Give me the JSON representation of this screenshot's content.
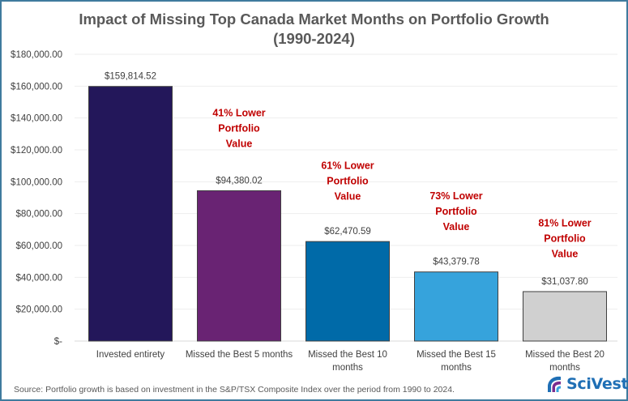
{
  "chart_data": {
    "type": "bar",
    "title": "Impact of Missing Top Canada Market Months on Portfolio Growth",
    "subtitle": "(1990-2024)",
    "xlabel": "",
    "ylabel": "",
    "ylim": [
      0,
      180000
    ],
    "ytick_step": 20000,
    "yticks": [
      "$-",
      "$20,000.00",
      "$40,000.00",
      "$60,000.00",
      "$80,000.00",
      "$100,000.00",
      "$120,000.00",
      "$140,000.00",
      "$160,000.00",
      "$180,000.00"
    ],
    "grid": true,
    "legend": "none",
    "categories": [
      [
        "Invested entirety"
      ],
      [
        "Missed the Best 5 months"
      ],
      [
        "Missed the Best 10",
        "months"
      ],
      [
        "Missed the Best 15",
        "months"
      ],
      [
        "Missed the Best 20",
        "months"
      ]
    ],
    "values": [
      159814.52,
      94380.02,
      62470.59,
      43379.78,
      31037.8
    ],
    "value_labels": [
      "$159,814.52",
      "$94,380.02",
      "$62,470.59",
      "$43,379.78",
      "$31,037.80"
    ],
    "colors": [
      "#23175a",
      "#692373",
      "#006aa8",
      "#36a3dc",
      "#d0d0d0"
    ],
    "annotations": [
      null,
      {
        "lines": [
          "41% Lower",
          "Portfolio",
          "Value"
        ],
        "y_value": 141000
      },
      {
        "lines": [
          "61% Lower",
          "Portfolio",
          "Value"
        ],
        "y_value": 108000
      },
      {
        "lines": [
          "73% Lower",
          "Portfolio",
          "Value"
        ],
        "y_value": 89000
      },
      {
        "lines": [
          "81% Lower",
          "Portfolio",
          "Value"
        ],
        "y_value": 72000
      }
    ],
    "annotation_color": "#c00000"
  },
  "title_line1": "Impact of Missing Top Canada Market Months on Portfolio Growth",
  "title_line2": "(1990-2024)",
  "source": "Source: Portfolio growth is based on investment in the S&P/TSX Composite Index over the period from 1990 to 2024.",
  "logo": {
    "text": "SciVest",
    "icon": "scivest-logo-icon"
  }
}
